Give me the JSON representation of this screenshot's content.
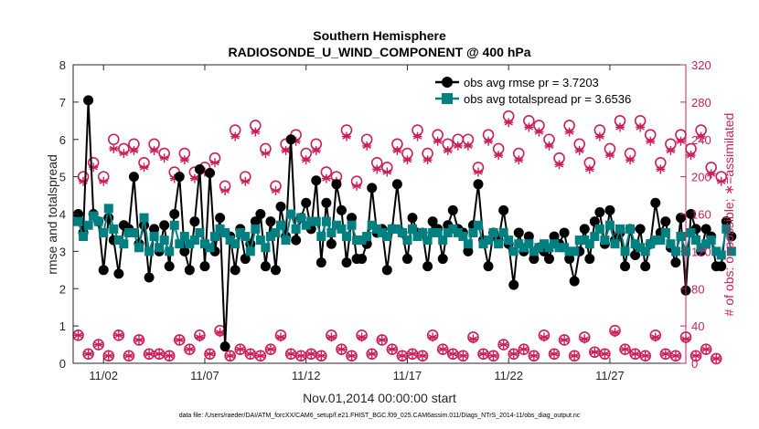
{
  "chart_data": {
    "type": "line",
    "title": "Southern Hemisphere",
    "subtitle": "RADIOSONDE_U_WIND_COMPONENT @ 400 hPa",
    "xlabel": "Nov.01,2014 00:00:00 start",
    "ylabel": "rmse and totalspread",
    "y2label": "# of obs: o=possible; ∗=assimilated",
    "xlim": [
      0.5,
      30.75
    ],
    "ylim": [
      0,
      8
    ],
    "y2lim": [
      0,
      320
    ],
    "x_ticks": [
      2,
      7,
      12,
      17,
      22,
      27
    ],
    "x_tick_labels": [
      "11/02",
      "11/07",
      "11/12",
      "11/17",
      "11/22",
      "11/27"
    ],
    "y_ticks": [
      0,
      1,
      2,
      3,
      4,
      5,
      6,
      7,
      8
    ],
    "y2_ticks": [
      0,
      40,
      80,
      120,
      160,
      200,
      240,
      280,
      320
    ],
    "legend_position": "top-right",
    "footnote": "data file: /Users/raeder/DAI/ATM_forcXX/CAM6_setup/f.e21.FHIST_BGC.f09_025.CAM6assim.011/Diags_NTrS_2014-11/obs_diag_output.nc",
    "colors": {
      "rmse": "#000000",
      "spread": "#008080",
      "obs": "#cc1f5a",
      "right_axis": "#cc1f5a"
    },
    "series": [
      {
        "name": "obs avg rmse pr = 3.7203",
        "axis": "left",
        "values": [
          4.0,
          3.5,
          7.05,
          4.0,
          3.8,
          2.5,
          3.9,
          3.3,
          2.4,
          3.7,
          3.6,
          5.0,
          3.2,
          3.7,
          2.3,
          3.6,
          3.0,
          3.7,
          2.6,
          4.0,
          5.0,
          3.0,
          2.5,
          3.8,
          5.2,
          2.6,
          5.1,
          3.0,
          3.9,
          0.45,
          3.4,
          2.5,
          3.6,
          2.8,
          3.2,
          3.8,
          4.0,
          2.6,
          3.8,
          2.5,
          4.2,
          3.4,
          6.0,
          3.3,
          3.9,
          4.3,
          3.6,
          4.9,
          2.7,
          4.3,
          3.2,
          4.8,
          4.1,
          2.7,
          3.9,
          2.8,
          2.8,
          3.2,
          4.7,
          3.5,
          3.6,
          2.5,
          3.6,
          4.8,
          3.5,
          2.8,
          3.9,
          3.5,
          3.5,
          2.6,
          3.8,
          3.6,
          2.8,
          3.7,
          4.1,
          3.6,
          3.5,
          3.0,
          3.7,
          4.8,
          3.3,
          2.6,
          3.5,
          3.3,
          4.1,
          3.2,
          2.1,
          3.5,
          3.0,
          3.4,
          2.8,
          3.1,
          3.0,
          2.8,
          3.4,
          3.2,
          3.5,
          2.8,
          2.2,
          3.0,
          3.6,
          2.8,
          3.8,
          4.05,
          3.2,
          4.1,
          3.3,
          3.5,
          2.6,
          3.6,
          2.9,
          3.6,
          2.6,
          3.2,
          4.3,
          3.5,
          3.8,
          3.1,
          2.7,
          3.9,
          1.95,
          4.0,
          3.6,
          3.0,
          3.6,
          3.4,
          2.6,
          2.6,
          3.8,
          3.4
        ]
      },
      {
        "name": "obs avg totalspread pr = 3.6536",
        "axis": "left",
        "values": [
          3.8,
          3.4,
          3.7,
          3.95,
          3.8,
          3.5,
          4.15,
          3.6,
          3.3,
          3.2,
          3.5,
          3.5,
          3.1,
          3.9,
          3.0,
          3.4,
          3.1,
          3.3,
          3.0,
          3.7,
          3.2,
          3.4,
          3.2,
          3.3,
          3.5,
          3.2,
          3.1,
          3.4,
          3.6,
          3.5,
          3.3,
          3.2,
          3.5,
          3.4,
          3.0,
          3.6,
          3.3,
          3.1,
          3.4,
          3.5,
          3.7,
          3.3,
          4.0,
          3.6,
          3.9,
          3.7,
          3.8,
          3.8,
          3.4,
          3.8,
          3.5,
          3.7,
          3.6,
          3.4,
          3.7,
          3.3,
          3.3,
          3.4,
          3.7,
          3.6,
          3.5,
          3.4,
          3.6,
          3.6,
          3.5,
          3.3,
          3.6,
          3.4,
          3.5,
          3.3,
          3.5,
          3.5,
          3.3,
          3.5,
          3.6,
          3.5,
          3.4,
          3.2,
          3.5,
          3.7,
          3.2,
          3.3,
          3.5,
          3.2,
          3.5,
          3.3,
          3.0,
          3.2,
          3.1,
          3.2,
          3.0,
          3.1,
          3.2,
          3.1,
          3.2,
          3.1,
          3.1,
          3.0,
          3.0,
          3.3,
          3.3,
          3.2,
          3.4,
          3.6,
          3.3,
          3.7,
          3.2,
          3.6,
          3.0,
          3.6,
          3.2,
          3.1,
          3.0,
          3.2,
          3.3,
          3.3,
          3.5,
          3.2,
          3.0,
          3.4,
          3.0,
          3.5,
          3.3,
          3.1,
          3.2,
          3.3,
          3.0,
          2.9,
          3.6,
          3.0
        ]
      },
      {
        "name": "obs possible",
        "axis": "right",
        "marker": "o",
        "values": [
          30,
          200,
          10,
          215,
          20,
          200,
          8,
          240,
          30,
          230,
          8,
          235,
          25,
          215,
          10,
          235,
          10,
          225,
          8,
          205,
          25,
          225,
          15,
          205,
          30,
          210,
          10,
          220,
          35,
          190,
          8,
          250,
          15,
          200,
          10,
          255,
          8,
          230,
          15,
          190,
          30,
          235,
          10,
          245,
          8,
          225,
          10,
          235,
          8,
          205,
          30,
          200,
          15,
          250,
          8,
          195,
          30,
          240,
          10,
          215,
          25,
          210,
          15,
          235,
          8,
          225,
          10,
          250,
          8,
          225,
          30,
          245,
          15,
          235,
          10,
          240,
          8,
          240,
          28,
          210,
          10,
          245,
          8,
          230,
          20,
          265,
          10,
          225,
          15,
          260,
          8,
          255,
          30,
          240,
          10,
          220,
          25,
          255,
          8,
          235,
          28,
          215,
          12,
          250,
          10,
          230,
          35,
          260,
          15,
          225,
          10,
          260,
          8,
          245,
          30,
          215,
          10,
          235,
          8,
          245,
          28,
          230,
          8,
          250,
          15,
          210,
          5,
          200
        ]
      },
      {
        "name": "obs assimilated",
        "axis": "right",
        "marker": "*",
        "values": [
          30,
          195,
          10,
          210,
          20,
          195,
          8,
          230,
          30,
          225,
          8,
          228,
          25,
          210,
          10,
          228,
          10,
          220,
          8,
          198,
          25,
          218,
          15,
          198,
          28,
          205,
          10,
          215,
          33,
          185,
          8,
          243,
          15,
          195,
          10,
          248,
          8,
          225,
          15,
          185,
          28,
          228,
          10,
          238,
          8,
          218,
          10,
          228,
          8,
          198,
          28,
          195,
          15,
          243,
          8,
          190,
          28,
          233,
          10,
          208,
          25,
          205,
          15,
          228,
          8,
          218,
          10,
          243,
          8,
          218,
          28,
          238,
          15,
          228,
          10,
          233,
          8,
          233,
          26,
          205,
          10,
          238,
          8,
          223,
          20,
          258,
          10,
          218,
          15,
          253,
          8,
          248,
          28,
          233,
          10,
          213,
          25,
          248,
          8,
          228,
          26,
          208,
          12,
          243,
          10,
          223,
          33,
          253,
          15,
          218,
          10,
          253,
          8,
          238,
          28,
          208,
          10,
          228,
          8,
          238,
          26,
          223,
          8,
          243,
          15,
          203,
          5,
          195
        ]
      }
    ]
  }
}
